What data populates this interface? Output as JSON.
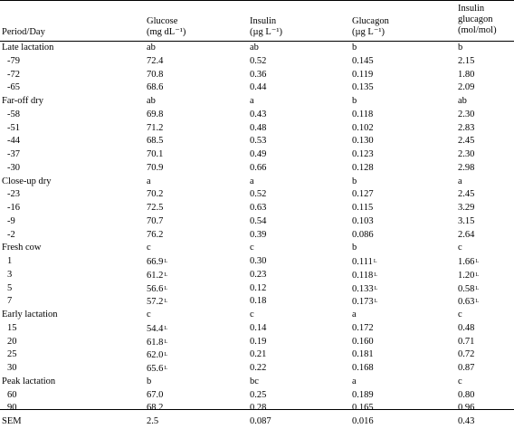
{
  "headers": [
    {
      "lines": [
        "Period/Day"
      ]
    },
    {
      "lines": [
        "Glucose",
        "(mg dL⁻¹)"
      ]
    },
    {
      "lines": [
        "Insulin",
        "(µg L⁻¹)"
      ]
    },
    {
      "lines": [
        "Glucagon",
        "(µg L⁻¹)"
      ]
    },
    {
      "lines": [
        "Insulin",
        "glucagon",
        "(mol/mol)"
      ]
    }
  ],
  "rows": [
    {
      "type": "group",
      "cells": [
        "Late lactation",
        "ab",
        "ab",
        "b",
        "b"
      ]
    },
    {
      "type": "data",
      "cells": [
        "-79",
        "72.4",
        "0.52",
        "0.145",
        "2.15"
      ]
    },
    {
      "type": "data",
      "cells": [
        "-72",
        "70.8",
        "0.36",
        "0.119",
        "1.80"
      ]
    },
    {
      "type": "data",
      "cells": [
        "-65",
        "68.6",
        "0.44",
        "0.135",
        "2.09"
      ]
    },
    {
      "type": "group",
      "cells": [
        "Far-off dry",
        "ab",
        "a",
        "b",
        "ab"
      ]
    },
    {
      "type": "data",
      "cells": [
        "-58",
        "69.8",
        "0.43",
        "0.118",
        "2.30"
      ]
    },
    {
      "type": "data",
      "cells": [
        "-51",
        "71.2",
        "0.48",
        "0.102",
        "2.83"
      ]
    },
    {
      "type": "data",
      "cells": [
        "-44",
        "68.5",
        "0.53",
        "0.130",
        "2.45"
      ]
    },
    {
      "type": "data",
      "cells": [
        "-37",
        "70.1",
        "0.49",
        "0.123",
        "2.30"
      ]
    },
    {
      "type": "data",
      "cells": [
        "-30",
        "70.9",
        "0.66",
        "0.128",
        "2.98"
      ]
    },
    {
      "type": "group",
      "cells": [
        "Close-up dry",
        "a",
        "a",
        "b",
        "a"
      ]
    },
    {
      "type": "data",
      "cells": [
        "-23",
        "70.2",
        "0.52",
        "0.127",
        "2.45"
      ]
    },
    {
      "type": "data",
      "cells": [
        "-16",
        "72.5",
        "0.63",
        "0.115",
        "3.29"
      ]
    },
    {
      "type": "data",
      "cells": [
        "-9",
        "70.7",
        "0.54",
        "0.103",
        "3.15"
      ]
    },
    {
      "type": "data",
      "cells": [
        "-2",
        "76.2",
        "0.39",
        "0.086",
        "2.64"
      ]
    },
    {
      "type": "group",
      "cells": [
        "Fresh cow",
        "c",
        "c",
        "b",
        "c"
      ]
    },
    {
      "type": "data",
      "cells": [
        "1",
        "66.9",
        "0.30",
        "0.111",
        "1.66"
      ],
      "sup": [
        "",
        "L",
        "",
        "L",
        "L"
      ]
    },
    {
      "type": "data",
      "cells": [
        "3",
        "61.2",
        "0.23",
        "0.118",
        "1.20"
      ],
      "sup": [
        "",
        "L",
        "",
        "L",
        "L"
      ]
    },
    {
      "type": "data",
      "cells": [
        "5",
        "56.6",
        "0.12",
        "0.133",
        "0.58"
      ],
      "sup": [
        "",
        "L",
        "",
        "L",
        "L"
      ]
    },
    {
      "type": "data",
      "cells": [
        "7",
        "57.2",
        "0.18",
        "0.173",
        "0.63"
      ],
      "sup": [
        "",
        "L",
        "",
        "L",
        "L"
      ]
    },
    {
      "type": "group",
      "cells": [
        "Early lactation",
        "c",
        "c",
        "a",
        "c"
      ]
    },
    {
      "type": "data",
      "cells": [
        "15",
        "54.4",
        "0.14",
        "0.172",
        "0.48"
      ],
      "sup": [
        "",
        "L",
        "",
        "",
        ""
      ]
    },
    {
      "type": "data",
      "cells": [
        "20",
        "61.8",
        "0.19",
        "0.160",
        "0.71"
      ],
      "sup": [
        "",
        "L",
        "",
        "",
        ""
      ]
    },
    {
      "type": "data",
      "cells": [
        "25",
        "62.0",
        "0.21",
        "0.181",
        "0.72"
      ],
      "sup": [
        "",
        "L",
        "",
        "",
        ""
      ]
    },
    {
      "type": "data",
      "cells": [
        "30",
        "65.6",
        "0.22",
        "0.168",
        "0.87"
      ],
      "sup": [
        "",
        "L",
        "",
        "",
        ""
      ]
    },
    {
      "type": "group",
      "cells": [
        "Peak lactation",
        "b",
        "bc",
        "a",
        "c"
      ]
    },
    {
      "type": "data",
      "cells": [
        "60",
        "67.0",
        "0.25",
        "0.189",
        "0.80"
      ]
    },
    {
      "type": "data",
      "cells": [
        "90",
        "68.2",
        "0.28",
        "0.165",
        "0.96"
      ]
    },
    {
      "type": "group",
      "cells": [
        "SEM",
        "2.5",
        "0.087",
        "0.016",
        "0.43"
      ]
    }
  ]
}
